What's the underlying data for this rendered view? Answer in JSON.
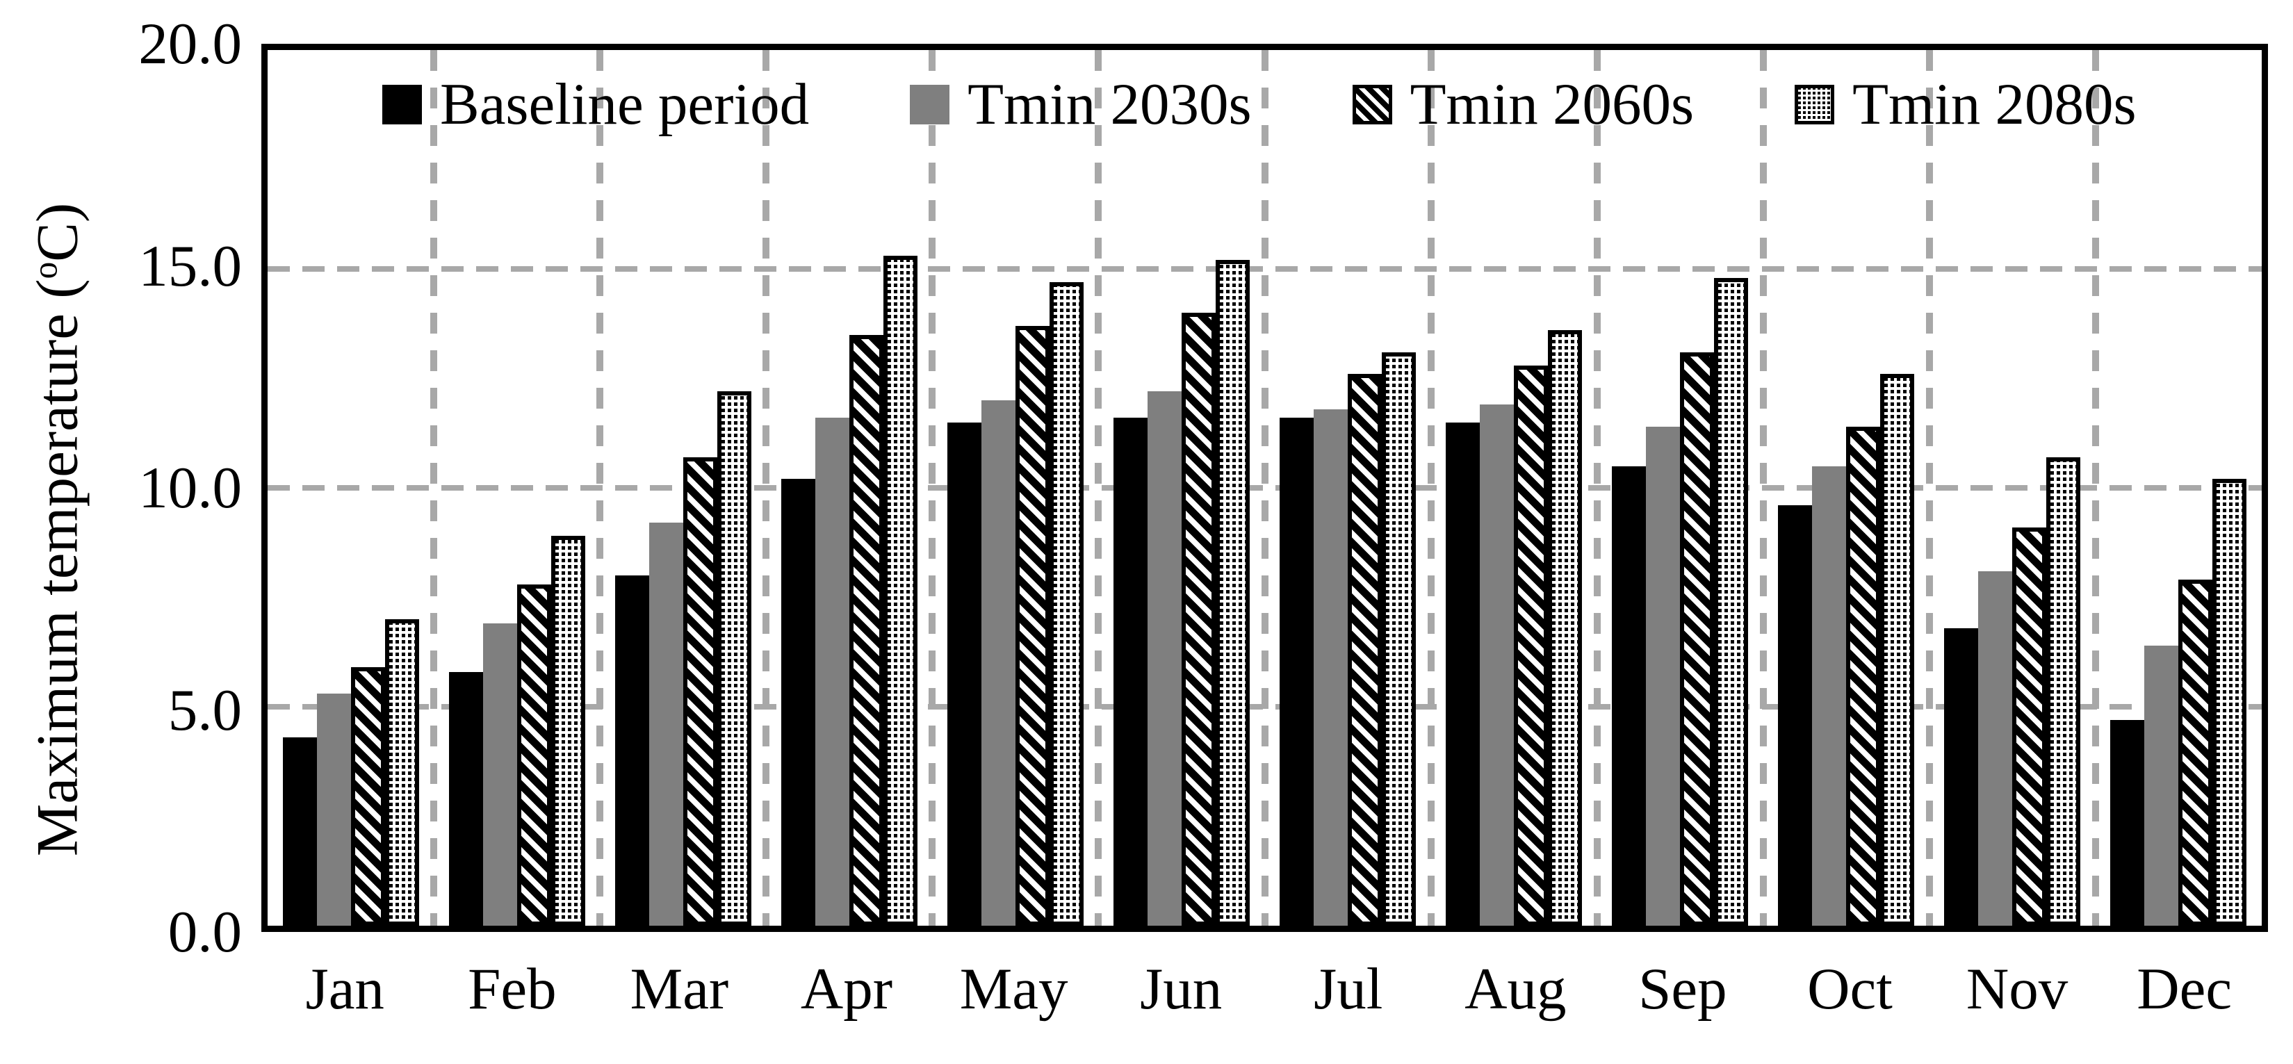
{
  "chart_data": {
    "type": "bar",
    "title": "",
    "xlabel": "",
    "ylabel": "Maximum temperature (°C)",
    "ylabel_parts": {
      "prefix": "Maximum temperature (",
      "sup": "o",
      "suffix": "C)"
    },
    "categories": [
      "Jan",
      "Feb",
      "Mar",
      "Apr",
      "May",
      "Jun",
      "Jul",
      "Aug",
      "Sep",
      "Oct",
      "Nov",
      "Dec"
    ],
    "series": [
      {
        "name": "Baseline period",
        "pattern": "solid-black",
        "values": [
          4.3,
          5.8,
          8.0,
          10.2,
          11.5,
          11.6,
          11.6,
          11.5,
          10.5,
          9.6,
          6.8,
          4.7
        ]
      },
      {
        "name": "Tmin 2030s",
        "pattern": "solid-gray",
        "values": [
          5.3,
          6.9,
          9.2,
          11.6,
          12.0,
          12.2,
          11.8,
          11.9,
          11.4,
          10.5,
          8.1,
          6.4
        ]
      },
      {
        "name": "Tmin 2060s",
        "pattern": "diagonal-hatch",
        "values": [
          5.9,
          7.8,
          10.7,
          13.5,
          13.7,
          14.0,
          12.6,
          12.8,
          13.1,
          11.4,
          9.1,
          7.9
        ]
      },
      {
        "name": "Tmin 2080s",
        "pattern": "dotted-grid",
        "values": [
          7.0,
          8.9,
          12.2,
          15.3,
          14.7,
          15.2,
          13.1,
          13.6,
          14.8,
          12.6,
          10.7,
          10.2
        ]
      }
    ],
    "ylim": [
      0,
      20
    ],
    "yticks": [
      {
        "value": 0,
        "label": "0.0"
      },
      {
        "value": 5,
        "label": "5.0"
      },
      {
        "value": 10,
        "label": "10.0"
      },
      {
        "value": 15,
        "label": "15.0"
      },
      {
        "value": 20,
        "label": "20.0"
      }
    ],
    "grid": {
      "horizontal": "dashed",
      "vertical": "dashed",
      "gridline_values": [
        5,
        10,
        15
      ]
    },
    "legend_position": "top-inside",
    "colors": {
      "bar_black": "#000000",
      "bar_gray": "#7f7f7f",
      "grid_gray": "#a8a8a8",
      "frame": "#000000",
      "background": "#ffffff"
    }
  }
}
